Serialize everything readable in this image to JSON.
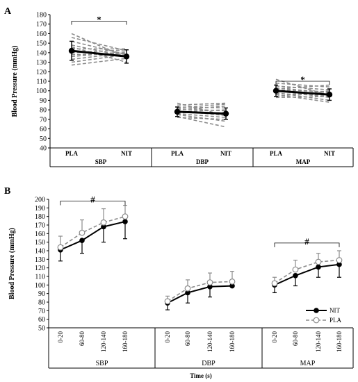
{
  "chart_data": [
    {
      "panel": "A",
      "type": "line",
      "ylabel": "Blood Pressure (mmHg)",
      "ylim": [
        40,
        180
      ],
      "ytick_step": 10,
      "groups": [
        {
          "name": "SBP",
          "conditions": [
            "PLA",
            "NIT"
          ],
          "mean": [
            142,
            136
          ],
          "sd": [
            10,
            7
          ],
          "individuals": [
            [
              160,
              135
            ],
            [
              156,
              142
            ],
            [
              152,
              138
            ],
            [
              148,
              136
            ],
            [
              146,
              130
            ],
            [
              144,
              144
            ],
            [
              142,
              137
            ],
            [
              140,
              143
            ],
            [
              138,
              139
            ],
            [
              136,
              141
            ],
            [
              133,
              140
            ],
            [
              130,
              138
            ],
            [
              127,
              134
            ]
          ],
          "significance": "*"
        },
        {
          "name": "DBP",
          "conditions": [
            "PLA",
            "NIT"
          ],
          "mean": [
            78,
            76
          ],
          "sd": [
            5,
            6
          ],
          "individuals": [
            [
              87,
              74
            ],
            [
              85,
              87
            ],
            [
              83,
              82
            ],
            [
              82,
              86
            ],
            [
              81,
              79
            ],
            [
              80,
              84
            ],
            [
              79,
              74
            ],
            [
              78,
              80
            ],
            [
              77,
              77
            ],
            [
              76,
              72
            ],
            [
              75,
              68
            ],
            [
              73,
              62
            ],
            [
              72,
              70
            ]
          ],
          "significance": ""
        },
        {
          "name": "MAP",
          "conditions": [
            "PLA",
            "NIT"
          ],
          "mean": [
            100,
            96
          ],
          "sd": [
            6,
            6
          ],
          "individuals": [
            [
              112,
              95
            ],
            [
              108,
              104
            ],
            [
              105,
              101
            ],
            [
              103,
              98
            ],
            [
              102,
              106
            ],
            [
              101,
              99
            ],
            [
              100,
              93
            ],
            [
              99,
              97
            ],
            [
              98,
              90
            ],
            [
              97,
              95
            ],
            [
              96,
              88
            ],
            [
              94,
              100
            ],
            [
              93,
              94
            ]
          ],
          "significance": "*"
        }
      ]
    },
    {
      "panel": "B",
      "type": "line",
      "ylabel": "Blood Pressure (mmHg)",
      "xlabel": "Time (s)",
      "ylim": [
        50,
        200
      ],
      "ytick_step": 10,
      "time_labels": [
        "0-20",
        "60-80",
        "120-140",
        "160-180"
      ],
      "legend": [
        "NIT",
        "PLA"
      ],
      "groups": [
        {
          "name": "SBP",
          "NIT": [
            141,
            152,
            168,
            174
          ],
          "NIT_sd": [
            13,
            15,
            18,
            20
          ],
          "PLA": [
            144,
            161,
            173,
            180
          ],
          "PLA_sd": [
            13,
            15,
            16,
            13
          ],
          "significance": "#"
        },
        {
          "name": "DBP",
          "NIT": [
            79,
            91,
            98,
            99
          ],
          "NIT_sd": [
            8,
            12,
            12,
            0
          ],
          "PLA": [
            81,
            96,
            103,
            104
          ],
          "PLA_sd": [
            6,
            10,
            11,
            12
          ],
          "significance": ""
        },
        {
          "name": "MAP",
          "NIT": [
            100,
            111,
            121,
            124
          ],
          "NIT_sd": [
            9,
            12,
            12,
            15
          ],
          "PLA": [
            102,
            118,
            127,
            129
          ],
          "PLA_sd": [
            7,
            11,
            10,
            11
          ],
          "significance": "#"
        }
      ]
    }
  ],
  "colors": {
    "individual": "#8c8c8c",
    "mean": "#000000",
    "pla": "#8c8c8c",
    "nit": "#000000"
  }
}
